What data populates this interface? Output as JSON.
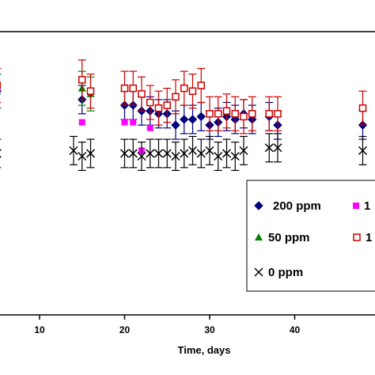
{
  "chart_data": {
    "type": "scatter",
    "title": "",
    "xlabel": "Time, days",
    "ylabel": "",
    "xlim": [
      5,
      48
    ],
    "ylim": [
      0,
      100
    ],
    "xticks": [
      10,
      20,
      30,
      40
    ],
    "grid": false,
    "legend_position": "bottom-right",
    "legend": [
      "200 ppm",
      "1",
      "50 ppm",
      "1",
      "0 ppm"
    ],
    "series": [
      {
        "name": "200 ppm",
        "marker": "diamond",
        "color": "#000080",
        "x": [
          5,
          15,
          20,
          21,
          22,
          23,
          24,
          25,
          26,
          27,
          28,
          29,
          30,
          31,
          32,
          33,
          34,
          35,
          37,
          38,
          48
        ],
        "y": [
          79,
          76,
          74,
          74,
          72,
          72,
          71,
          71,
          67,
          69,
          69,
          70,
          67,
          68,
          70,
          69,
          71,
          69,
          70,
          67,
          67
        ],
        "err": [
          6,
          5,
          5,
          5,
          5,
          5,
          5,
          5,
          5,
          5,
          5,
          5,
          5,
          5,
          5,
          5,
          5,
          5,
          5,
          5,
          5
        ]
      },
      {
        "name": "1",
        "marker": "square",
        "color": "#ff00ff",
        "x": [
          5,
          15,
          20,
          21,
          22,
          23
        ],
        "y": [
          80,
          68,
          68,
          68,
          58,
          66
        ],
        "err": [
          0,
          0,
          0,
          0,
          0,
          0
        ]
      },
      {
        "name": "50 ppm",
        "marker": "triangle",
        "color": "#008000",
        "x": [
          5,
          15,
          16
        ],
        "y": [
          79,
          80,
          78
        ],
        "err": [
          6,
          6,
          6
        ]
      },
      {
        "name": "1",
        "marker": "open-square",
        "color": "#cc0000",
        "x": [
          5,
          15,
          16,
          20,
          21,
          22,
          23,
          24,
          25,
          26,
          27,
          28,
          29,
          30,
          31,
          32,
          33,
          34,
          35,
          37,
          38,
          48
        ],
        "y": [
          81,
          83,
          79,
          80,
          80,
          78,
          75,
          73,
          74,
          77,
          80,
          79,
          81,
          71,
          71,
          72,
          71,
          70,
          71,
          71,
          71,
          73
        ],
        "err": [
          6,
          7,
          6,
          6,
          6,
          6,
          6,
          6,
          6,
          6,
          6,
          6,
          6,
          6,
          6,
          6,
          6,
          6,
          6,
          6,
          6,
          6
        ]
      },
      {
        "name": "0 ppm",
        "marker": "x",
        "color": "#000000",
        "x": [
          5,
          14,
          15,
          16,
          20,
          21,
          22,
          23,
          24,
          25,
          26,
          27,
          28,
          29,
          30,
          31,
          32,
          33,
          34,
          37,
          38,
          48
        ],
        "y": [
          57,
          58,
          56,
          57,
          57,
          57,
          56,
          57,
          57,
          57,
          56,
          57,
          58,
          57,
          58,
          56,
          57,
          56,
          58,
          59,
          59,
          58
        ],
        "err": [
          5,
          5,
          5,
          5,
          5,
          5,
          5,
          5,
          5,
          5,
          5,
          5,
          5,
          5,
          5,
          5,
          5,
          5,
          5,
          5,
          5,
          5
        ]
      }
    ]
  }
}
